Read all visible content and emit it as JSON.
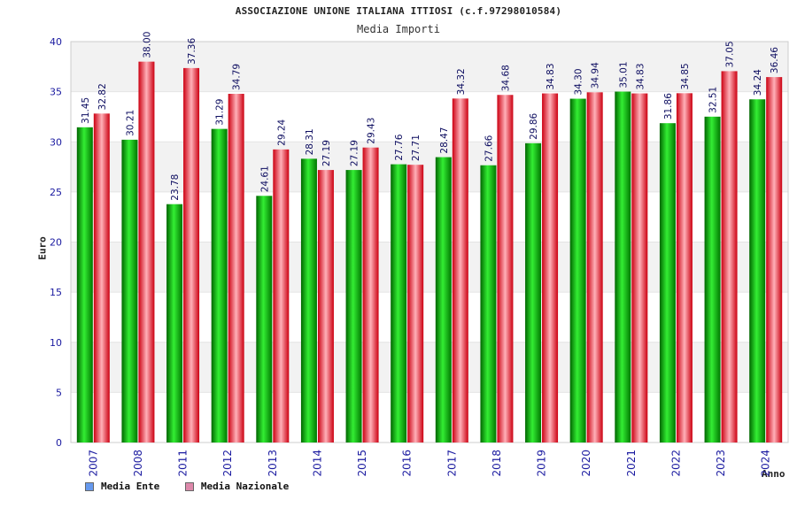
{
  "chart_data": {
    "type": "bar",
    "title": "ASSOCIAZIONE UNIONE ITALIANA ITTIOSI (c.f.97298010584)",
    "subtitle": "Media Importi",
    "xlabel": "Anno",
    "ylabel": "Euro",
    "ylim": [
      0,
      40
    ],
    "yticks": [
      0,
      5,
      10,
      15,
      20,
      25,
      30,
      35,
      40
    ],
    "categories": [
      "2007",
      "2008",
      "2011",
      "2012",
      "2013",
      "2014",
      "2015",
      "2016",
      "2017",
      "2018",
      "2019",
      "2020",
      "2021",
      "2022",
      "2023",
      "2024"
    ],
    "series": [
      {
        "name": "Media Ente",
        "color": "#00aa00",
        "values": [
          31.45,
          30.21,
          23.78,
          31.29,
          24.61,
          28.31,
          27.19,
          27.76,
          28.47,
          27.66,
          29.86,
          34.3,
          35.01,
          31.86,
          32.51,
          34.24
        ],
        "labels": [
          "31.45",
          "30.21",
          "23.78",
          "31.29",
          "24.61",
          "28.31",
          "27.19",
          "27.76",
          "28.47",
          "27.66",
          "29.86",
          "34.30",
          "35.01",
          "31.86",
          "32.51",
          "34.24"
        ]
      },
      {
        "name": "Media Nazionale",
        "color": "#dd1122",
        "values": [
          32.82,
          38.0,
          37.36,
          34.79,
          29.24,
          27.19,
          29.43,
          27.71,
          34.32,
          34.68,
          34.83,
          34.94,
          34.83,
          34.85,
          37.05,
          36.46
        ],
        "labels": [
          "32.82",
          "38.00",
          "37.36",
          "34.79",
          "29.24",
          "27.19",
          "29.43",
          "27.71",
          "34.32",
          "34.68",
          "34.83",
          "34.94",
          "34.83",
          "34.85",
          "37.05",
          "36.46"
        ]
      }
    ],
    "legend": [
      {
        "label": "Media Ente",
        "swatch": "#6699ee"
      },
      {
        "label": "Media Nazionale",
        "swatch": "#dd88aa"
      }
    ],
    "legend_position": "bottom-left",
    "grid": true
  }
}
